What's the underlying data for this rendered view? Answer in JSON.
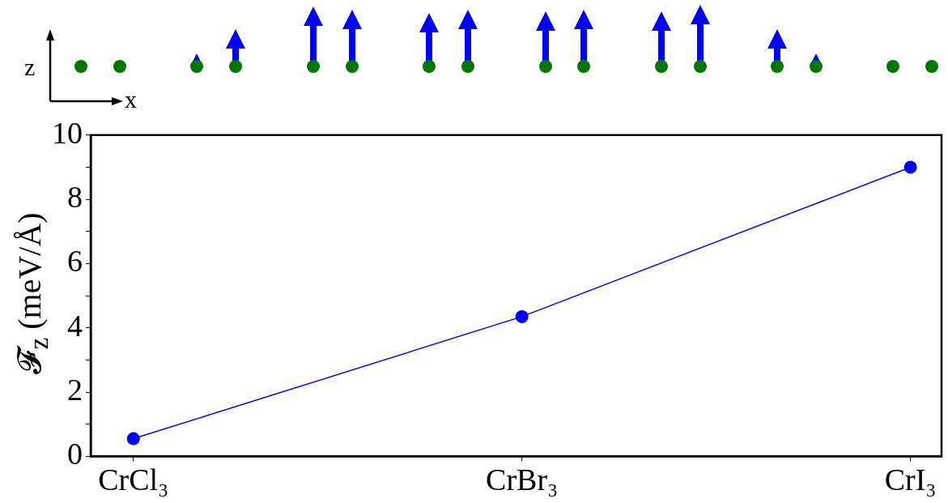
{
  "chart_data": {
    "type": "line",
    "ylabel": "𝓕$_{z}$ (meV/Å)",
    "categories": [
      "CrCl₃",
      "CrBr₃",
      "CrI₃"
    ],
    "series": [
      {
        "color": "#0000ff",
        "values": [
          0.55,
          4.35,
          9.0
        ]
      }
    ],
    "ylim": [
      0,
      10
    ],
    "yticks": [
      0,
      {
        "value": 1,
        "label": null
      },
      2,
      {
        "value": 3,
        "label": null
      },
      4,
      {
        "value": 5,
        "label": null
      },
      6,
      {
        "value": 7,
        "label": null
      },
      8,
      {
        "value": 9,
        "label": null
      },
      10
    ],
    "marker": "circle",
    "line_style": "solid",
    "grid": false,
    "legend": false,
    "annotations": [
      "z",
      "x"
    ]
  }
}
